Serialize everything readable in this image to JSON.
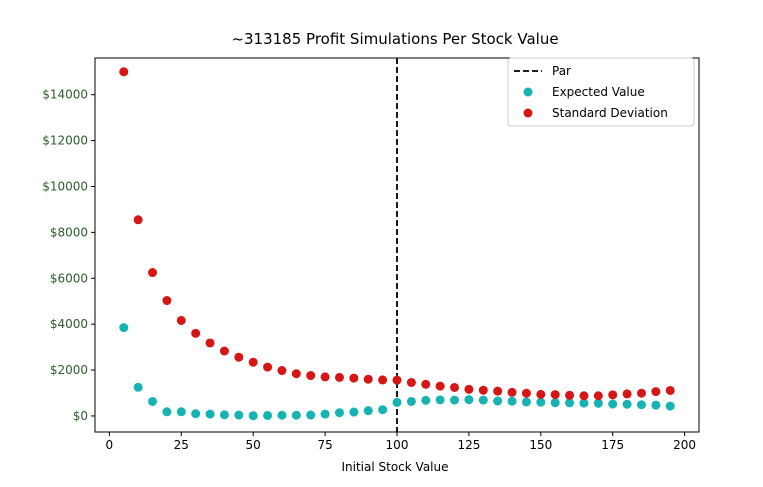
{
  "chart_data": {
    "type": "scatter",
    "title": "~313185 Profit Simulations Per Stock Value",
    "xlabel": "Initial Stock Value",
    "ylabel": "",
    "xlim": [
      -5,
      205
    ],
    "ylim": [
      -700,
      15600
    ],
    "x_ticks": [
      0,
      25,
      50,
      75,
      100,
      125,
      150,
      175,
      200
    ],
    "x_tick_labels": [
      "0",
      "25",
      "50",
      "75",
      "100",
      "125",
      "150",
      "175",
      "200"
    ],
    "y_ticks": [
      0,
      2000,
      4000,
      6000,
      8000,
      10000,
      12000,
      14000
    ],
    "y_tick_labels": [
      "$0",
      "$2000",
      "$4000",
      "$6000",
      "$8000",
      "$10000",
      "$12000",
      "$14000"
    ],
    "y_tick_color": "#2e5e2e",
    "grid": false,
    "legend_position": "top-right",
    "par_line": {
      "label": "Par",
      "x": 100,
      "color": "#000000",
      "style": "dashed"
    },
    "x": [
      5,
      10,
      15,
      20,
      25,
      30,
      35,
      40,
      45,
      50,
      55,
      60,
      65,
      70,
      75,
      80,
      85,
      90,
      95,
      100,
      105,
      110,
      115,
      120,
      125,
      130,
      135,
      140,
      145,
      150,
      155,
      160,
      165,
      170,
      175,
      180,
      185,
      190,
      195
    ],
    "series": [
      {
        "name": "Expected Value",
        "color": "#17b3b3",
        "values": [
          3850,
          1250,
          630,
          180,
          180,
          100,
          80,
          50,
          40,
          10,
          20,
          30,
          30,
          40,
          80,
          140,
          170,
          230,
          270,
          590,
          630,
          680,
          700,
          690,
          710,
          690,
          650,
          640,
          610,
          600,
          580,
          570,
          560,
          550,
          520,
          510,
          490,
          470,
          430
        ]
      },
      {
        "name": "Standard Deviation",
        "color": "#d61515",
        "values": [
          15000,
          8550,
          6250,
          5030,
          4160,
          3600,
          3180,
          2830,
          2560,
          2340,
          2130,
          1980,
          1840,
          1760,
          1700,
          1680,
          1650,
          1600,
          1570,
          1560,
          1460,
          1380,
          1300,
          1240,
          1160,
          1120,
          1080,
          1030,
          990,
          940,
          930,
          900,
          880,
          880,
          920,
          960,
          990,
          1060,
          1110
        ]
      }
    ]
  }
}
